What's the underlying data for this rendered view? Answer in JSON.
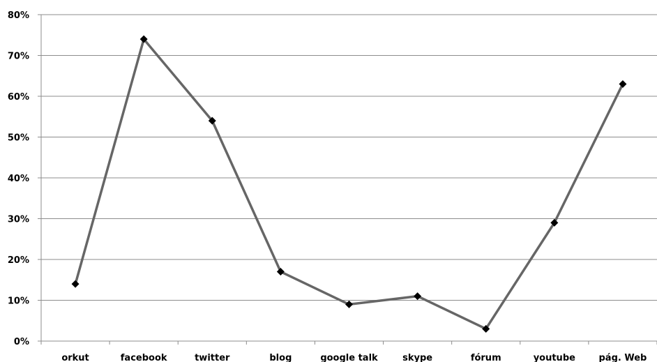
{
  "chart_data": {
    "type": "line",
    "title": "",
    "xlabel": "",
    "ylabel": "",
    "categories": [
      "orkut",
      "facebook",
      "twitter",
      "blog",
      "google talk",
      "skype",
      "fórum",
      "youtube",
      "pág. Web"
    ],
    "series": [
      {
        "values": [
          0.14,
          0.74,
          0.54,
          0.17,
          0.09,
          0.11,
          0.03,
          0.29,
          0.63
        ]
      }
    ],
    "ylim": [
      0,
      0.8
    ],
    "yticks": [
      0,
      0.1,
      0.2,
      0.3,
      0.4,
      0.5,
      0.6,
      0.7,
      0.8
    ],
    "ytick_labels": [
      "0%",
      "10%",
      "20%",
      "30%",
      "40%",
      "50%",
      "60%",
      "70%",
      "80%"
    ],
    "grid": "horizontal",
    "legend": "none",
    "colors": {
      "line": "#666666",
      "marker": "#000000",
      "grid": "#8c8c8c",
      "axis": "#8c8c8c"
    }
  }
}
